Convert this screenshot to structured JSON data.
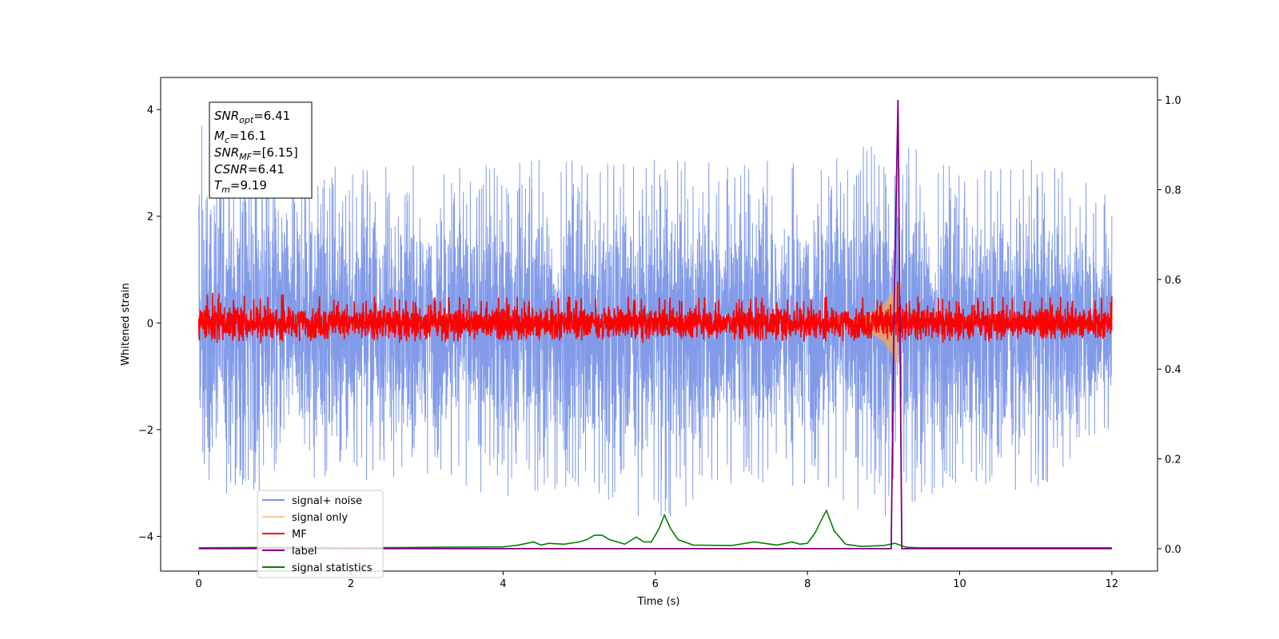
{
  "chart_data": {
    "type": "line",
    "title": "",
    "xlabel": "Time (s)",
    "ylabel": "Whitened strain",
    "xlim": [
      -0.5,
      12.6
    ],
    "ylim": [
      -4.65,
      4.6
    ],
    "y2lim": [
      -0.05,
      1.05
    ],
    "xticks": [
      0,
      2,
      4,
      6,
      8,
      10,
      12
    ],
    "yticks": [
      -4,
      -2,
      0,
      2,
      4
    ],
    "y2ticks": [
      0.0,
      0.2,
      0.4,
      0.6,
      0.8,
      1.0
    ],
    "xtick_labels": [
      "0",
      "2",
      "4",
      "6",
      "8",
      "10",
      "12"
    ],
    "ytick_labels": [
      "−4",
      "−2",
      "0",
      "2",
      "4"
    ],
    "y2tick_labels": [
      "0.0",
      "0.2",
      "0.4",
      "0.6",
      "0.8",
      "1.0"
    ],
    "grid": false,
    "legend_position": "lower-left",
    "colors": {
      "signal_noise": "#7b96e8",
      "signal_only": "#f2a65a",
      "mf": "#ff0000",
      "label": "#800080",
      "signal_statistics": "#008000"
    },
    "stats": {
      "snr_opt": {
        "sym": "SNR",
        "sub": "opt",
        "val": "=6.41"
      },
      "mc": {
        "sym": "M",
        "sub": "c",
        "val": "=16.1"
      },
      "snr_mf": {
        "sym": "SNR",
        "sub": "MF",
        "val": "=[6.15]"
      },
      "csnr": {
        "sym": "CSNR",
        "sub": "",
        "val": "=6.41"
      },
      "tm": {
        "sym": "T",
        "sub": "m",
        "val": "=9.19"
      }
    },
    "series": [
      {
        "key": "signal_noise",
        "name": "signal+ noise",
        "axis": "left",
        "envelope_x": [
          0,
          1,
          2,
          3,
          4,
          5,
          6,
          7,
          8,
          9,
          10,
          11,
          12
        ],
        "envelope_upper": [
          4.1,
          3.2,
          3.0,
          3.0,
          3.1,
          3.2,
          3.2,
          3.1,
          3.0,
          3.6,
          3.0,
          3.2,
          2.5
        ],
        "envelope_lower": [
          -2.9,
          -3.3,
          -3.0,
          -2.9,
          -3.3,
          -3.1,
          -3.8,
          -3.1,
          -3.1,
          -3.7,
          -3.0,
          -3.2,
          -2.0
        ]
      },
      {
        "key": "signal_only",
        "name": "signal only",
        "axis": "left",
        "points": [
          [
            8.6,
            0
          ],
          [
            8.8,
            0.15
          ],
          [
            9.0,
            0.35
          ],
          [
            9.1,
            0.55
          ],
          [
            9.19,
            0.8
          ],
          [
            9.2,
            0
          ]
        ],
        "symmetric": true
      },
      {
        "key": "mf",
        "name": "MF",
        "axis": "left",
        "envelope_x": [
          0,
          2,
          4,
          6,
          8,
          9.1,
          9.19,
          9.3,
          12
        ],
        "envelope_upper": [
          0.6,
          0.5,
          0.5,
          0.5,
          0.5,
          0.5,
          1.0,
          0.5,
          0.5
        ],
        "envelope_lower": [
          -0.35,
          -0.35,
          -0.35,
          -0.3,
          -0.35,
          -0.35,
          -0.6,
          -0.35,
          -0.3
        ]
      },
      {
        "key": "label",
        "name": "label",
        "axis": "right",
        "x": [
          0,
          9.1,
          9.14,
          9.19,
          9.24,
          12
        ],
        "y": [
          0,
          0,
          0.55,
          1.0,
          0,
          0
        ]
      },
      {
        "key": "signal_statistics",
        "name": "signal statistics",
        "axis": "right",
        "x": [
          0,
          1,
          2,
          3,
          4,
          4.2,
          4.4,
          4.5,
          4.6,
          4.8,
          5.0,
          5.1,
          5.2,
          5.3,
          5.4,
          5.6,
          5.75,
          5.85,
          5.95,
          6.05,
          6.12,
          6.2,
          6.3,
          6.5,
          7.0,
          7.3,
          7.6,
          7.8,
          7.9,
          8.0,
          8.1,
          8.2,
          8.25,
          8.35,
          8.5,
          8.7,
          9.0,
          9.15,
          9.3,
          9.5,
          10,
          11,
          12
        ],
        "y": [
          0.002,
          0.003,
          0.002,
          0.003,
          0.004,
          0.008,
          0.015,
          0.008,
          0.012,
          0.01,
          0.015,
          0.02,
          0.03,
          0.03,
          0.02,
          0.01,
          0.026,
          0.015,
          0.015,
          0.045,
          0.075,
          0.045,
          0.02,
          0.008,
          0.007,
          0.015,
          0.008,
          0.015,
          0.01,
          0.012,
          0.035,
          0.07,
          0.085,
          0.04,
          0.01,
          0.005,
          0.007,
          0.012,
          0.003,
          0.002,
          0.002,
          0.002,
          0.002
        ]
      }
    ]
  }
}
